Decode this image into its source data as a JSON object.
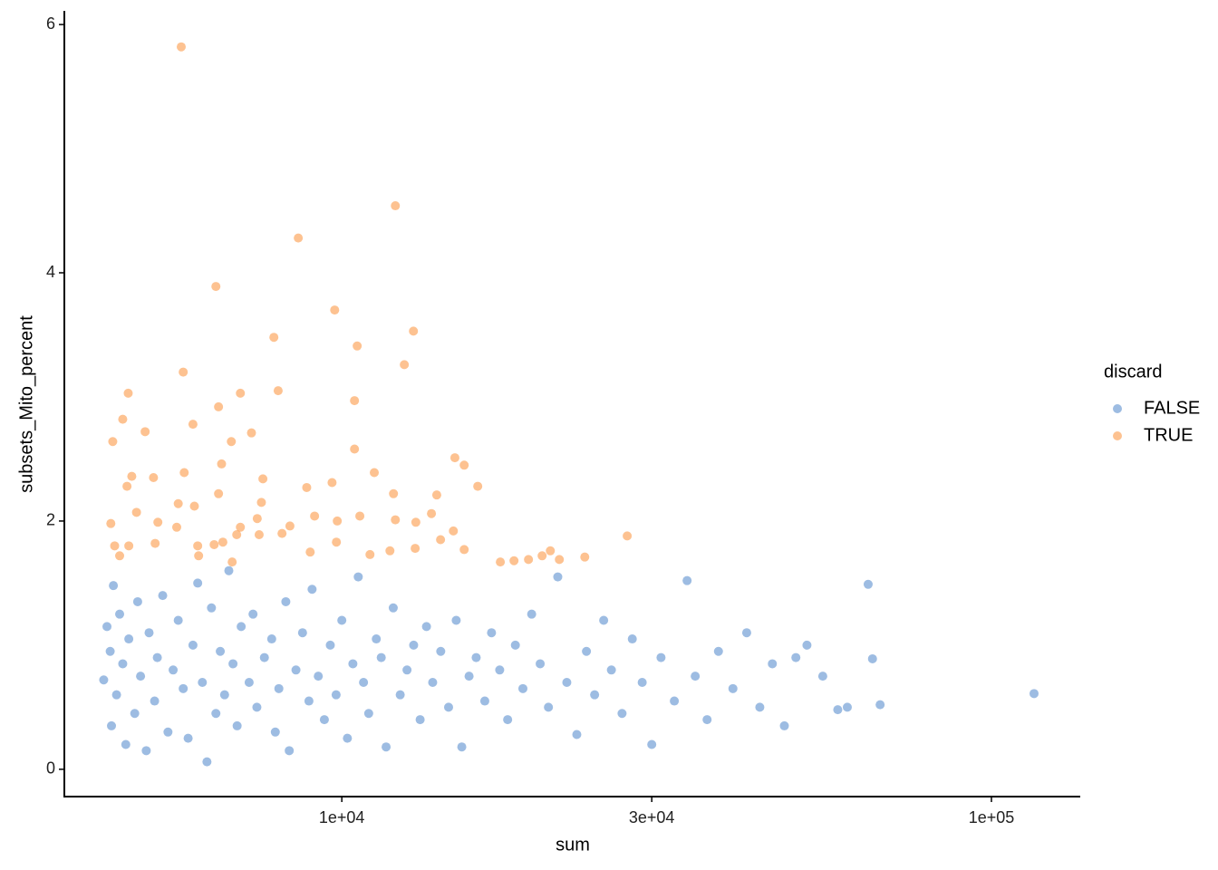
{
  "chart_data": {
    "type": "scatter",
    "x_label": "sum",
    "y_label": "subsets_Mito_percent",
    "legend_title": "discard",
    "xscale": "log",
    "legend_position": "right",
    "xlim": [
      3740,
      137000
    ],
    "ylim": [
      -0.22,
      6.11
    ],
    "xticks": [
      {
        "value": 10000,
        "label": "1e+04"
      },
      {
        "value": 30000,
        "label": "3e+04"
      },
      {
        "value": 100000,
        "label": "1e+05"
      }
    ],
    "yticks": [
      0,
      2,
      4,
      6
    ],
    "series": [
      {
        "name": "FALSE",
        "color": "#5b8fcf",
        "x": [
          4300,
          4350,
          4400,
          4420,
          4450,
          4500,
          4550,
          4600,
          4650,
          4700,
          4800,
          4850,
          4900,
          5000,
          5050,
          5150,
          5200,
          5300,
          5400,
          5500,
          5600,
          5700,
          5800,
          5900,
          6000,
          6100,
          6200,
          6300,
          6400,
          6500,
          6600,
          6700,
          6800,
          6900,
          7000,
          7200,
          7300,
          7400,
          7600,
          7800,
          7900,
          8000,
          8200,
          8300,
          8500,
          8700,
          8900,
          9000,
          9200,
          9400,
          9600,
          9800,
          10000,
          10200,
          10400,
          10600,
          10800,
          11000,
          11300,
          11500,
          11700,
          12000,
          12300,
          12600,
          12900,
          13200,
          13500,
          13800,
          14200,
          14600,
          15000,
          15300,
          15700,
          16100,
          16600,
          17000,
          17500,
          18000,
          18500,
          19000,
          19600,
          20200,
          20800,
          21500,
          22200,
          23000,
          23800,
          24500,
          25300,
          26000,
          27000,
          28000,
          29000,
          30000,
          31000,
          32500,
          34000,
          35000,
          36500,
          38000,
          40000,
          42000,
          44000,
          46000,
          48000,
          50000,
          52000,
          55000,
          58000,
          60000,
          64600,
          65600,
          67400,
          116300
        ],
        "values": [
          0.72,
          1.15,
          0.95,
          0.35,
          1.48,
          0.6,
          1.25,
          0.85,
          0.2,
          1.05,
          0.45,
          1.35,
          0.75,
          0.15,
          1.1,
          0.55,
          0.9,
          1.4,
          0.3,
          0.8,
          1.2,
          0.65,
          0.25,
          1.0,
          1.5,
          0.7,
          0.06,
          1.3,
          0.45,
          0.95,
          0.6,
          1.6,
          0.85,
          0.35,
          1.15,
          0.7,
          1.25,
          0.5,
          0.9,
          1.05,
          0.3,
          0.65,
          1.35,
          0.15,
          0.8,
          1.1,
          0.55,
          1.45,
          0.75,
          0.4,
          1.0,
          0.6,
          1.2,
          0.25,
          0.85,
          1.55,
          0.7,
          0.45,
          1.05,
          0.9,
          0.18,
          1.3,
          0.6,
          0.8,
          1.0,
          0.4,
          1.15,
          0.7,
          0.95,
          0.5,
          1.2,
          0.18,
          0.75,
          0.9,
          0.55,
          1.1,
          0.8,
          0.4,
          1.0,
          0.65,
          1.25,
          0.85,
          0.5,
          1.55,
          0.7,
          0.28,
          0.95,
          0.6,
          1.2,
          0.8,
          0.45,
          1.05,
          0.7,
          0.2,
          0.9,
          0.55,
          1.52,
          0.75,
          0.4,
          0.95,
          0.65,
          1.1,
          0.5,
          0.85,
          0.35,
          0.9,
          1.0,
          0.75,
          0.48,
          0.5,
          1.49,
          0.89,
          0.52,
          0.61
        ]
      },
      {
        "name": "TRUE",
        "color": "#fb9a47",
        "x": [
          5660,
          12090,
          8570,
          6400,
          9750,
          12890,
          7860,
          10560,
          12480,
          5700,
          4690,
          7980,
          6980,
          10460,
          4440,
          4600,
          4980,
          5900,
          6460,
          6760,
          7260,
          10460,
          14930,
          15430,
          4750,
          5130,
          5720,
          6530,
          7560,
          8830,
          11220,
          16190,
          4670,
          6460,
          7520,
          9660,
          12010,
          14000,
          4410,
          4830,
          5210,
          5600,
          5930,
          6980,
          7410,
          8320,
          9080,
          9840,
          10660,
          12090,
          13000,
          13740,
          4470,
          4700,
          5160,
          5570,
          6000,
          6360,
          6560,
          6890,
          7460,
          8090,
          8940,
          9810,
          11050,
          11860,
          12970,
          14190,
          14850,
          15430,
          4550,
          6020,
          6780,
          17540,
          18410,
          19380,
          20340,
          20940,
          21620,
          23660,
          27500
        ],
        "values": [
          5.82,
          4.54,
          4.28,
          3.89,
          3.7,
          3.53,
          3.48,
          3.41,
          3.26,
          3.2,
          3.03,
          3.05,
          3.03,
          2.97,
          2.64,
          2.82,
          2.72,
          2.78,
          2.92,
          2.64,
          2.71,
          2.58,
          2.51,
          2.45,
          2.36,
          2.35,
          2.39,
          2.46,
          2.34,
          2.27,
          2.39,
          2.28,
          2.28,
          2.22,
          2.15,
          2.31,
          2.22,
          2.21,
          1.98,
          2.07,
          1.99,
          2.14,
          2.12,
          1.95,
          2.02,
          1.96,
          2.04,
          2.0,
          2.04,
          2.01,
          1.99,
          2.06,
          1.8,
          1.8,
          1.82,
          1.95,
          1.8,
          1.81,
          1.83,
          1.89,
          1.89,
          1.9,
          1.75,
          1.83,
          1.73,
          1.76,
          1.78,
          1.85,
          1.92,
          1.77,
          1.72,
          1.72,
          1.67,
          1.67,
          1.68,
          1.69,
          1.72,
          1.76,
          1.69,
          1.71,
          1.88
        ]
      }
    ]
  }
}
